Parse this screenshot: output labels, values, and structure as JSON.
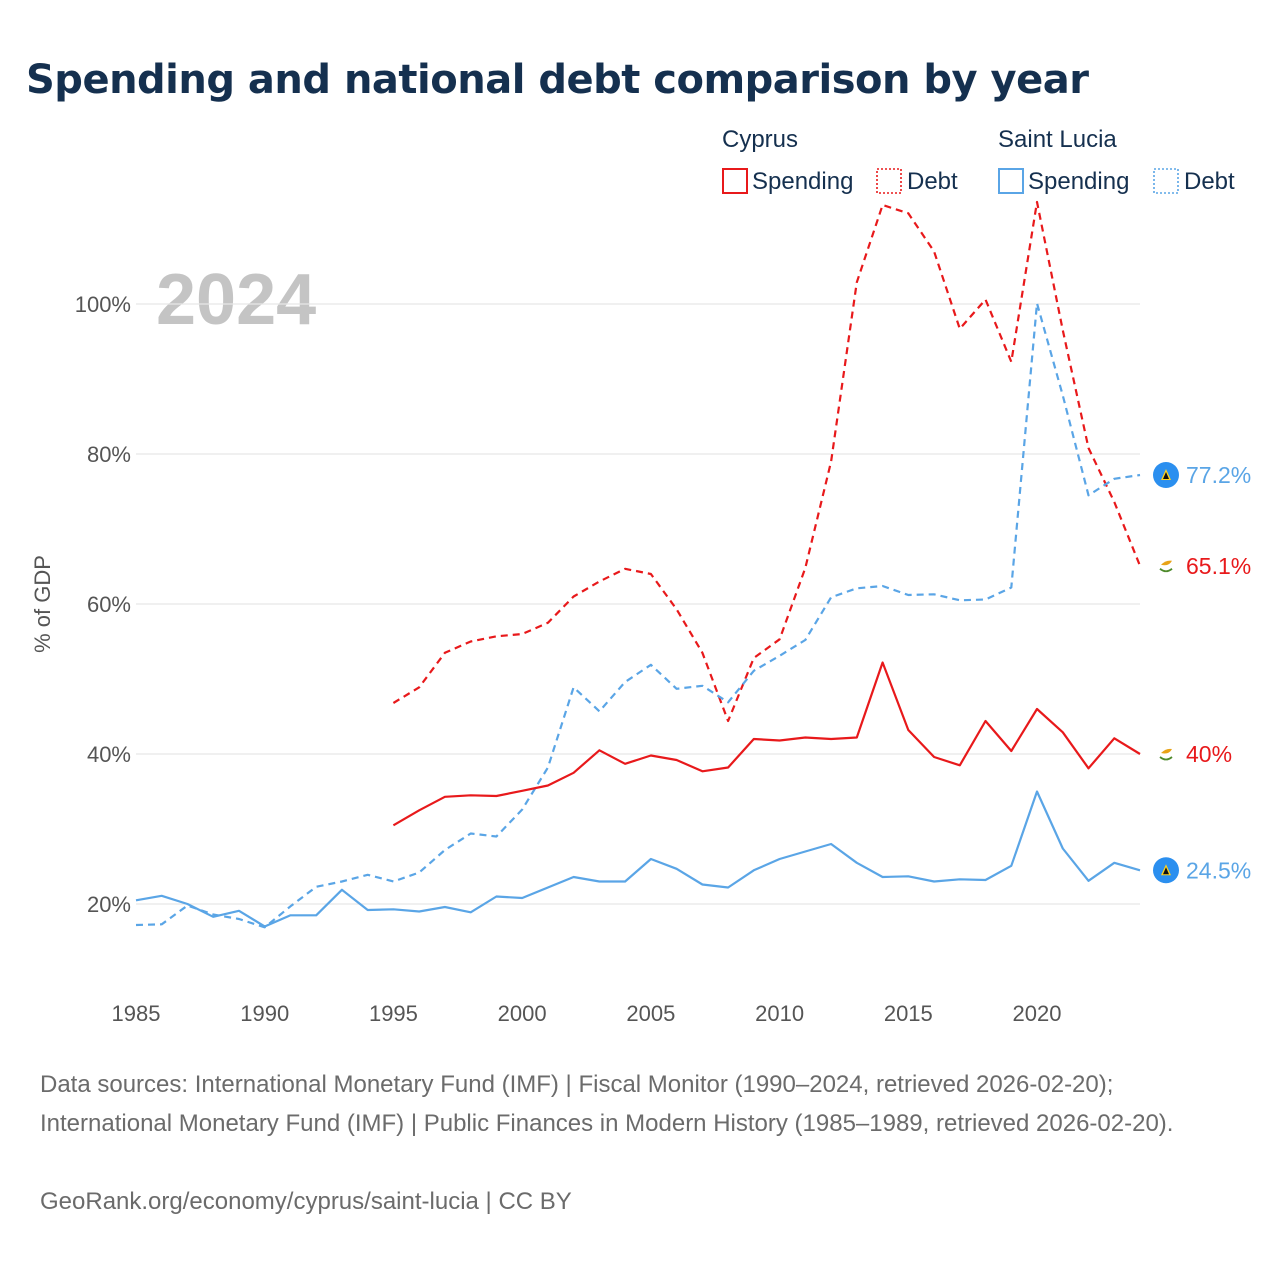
{
  "chart_data": {
    "type": "line",
    "title": "Spending and national debt comparison by year",
    "highlight_year": "2024",
    "ylabel": "% of GDP",
    "xlim": [
      1985,
      2024
    ],
    "ylim": [
      10,
      110
    ],
    "x_ticks": [
      1985,
      1990,
      1995,
      2000,
      2005,
      2010,
      2015,
      2020
    ],
    "y_ticks": [
      20,
      40,
      60,
      80,
      100
    ],
    "y_tick_suffix": "%",
    "legend": {
      "groups": [
        {
          "country": "Cyprus",
          "color": "#e8191b",
          "items": [
            {
              "label": "Spending",
              "style": "solid"
            },
            {
              "label": "Debt",
              "style": "dotted"
            }
          ]
        },
        {
          "country": "Saint Lucia",
          "color": "#5aa5e6",
          "items": [
            {
              "label": "Spending",
              "style": "solid"
            },
            {
              "label": "Debt",
              "style": "dotted"
            }
          ]
        }
      ]
    },
    "series": [
      {
        "name": "Cyprus Debt",
        "country": "Cyprus",
        "color": "#e8191b",
        "dash": true,
        "end_label": "65.1%",
        "x": [
          1995,
          1996,
          1997,
          1998,
          1999,
          2000,
          2001,
          2002,
          2003,
          2004,
          2005,
          2006,
          2007,
          2008,
          2009,
          2010,
          2011,
          2012,
          2013,
          2014,
          2015,
          2016,
          2017,
          2018,
          2019,
          2020,
          2021,
          2022,
          2023,
          2024
        ],
        "values": [
          46.8,
          48.9,
          53.5,
          55,
          55.7,
          56,
          57.5,
          61,
          63,
          64.7,
          64,
          59.3,
          53.5,
          44.4,
          52.8,
          55.3,
          64.8,
          79,
          102.9,
          113.2,
          112.1,
          107,
          96.7,
          100.6,
          92.3,
          113.6,
          96.5,
          80.8,
          73.6,
          65.1
        ]
      },
      {
        "name": "Saint Lucia Debt",
        "country": "Saint Lucia",
        "color": "#5aa5e6",
        "dash": true,
        "end_label": "77.2%",
        "x": [
          1985,
          1986,
          1987,
          1988,
          1989,
          1990,
          1991,
          1992,
          1993,
          1994,
          1995,
          1996,
          1997,
          1998,
          1999,
          2000,
          2001,
          2002,
          2003,
          2004,
          2005,
          2006,
          2007,
          2008,
          2009,
          2010,
          2011,
          2012,
          2013,
          2014,
          2015,
          2016,
          2017,
          2018,
          2019,
          2020,
          2021,
          2022,
          2023,
          2024
        ],
        "values": [
          17.2,
          17.3,
          19.8,
          18.6,
          18,
          16.9,
          19.7,
          22.3,
          23,
          23.9,
          23,
          24.2,
          27.2,
          29.4,
          29,
          32.6,
          38.2,
          48.9,
          45.7,
          49.6,
          51.9,
          48.7,
          49.1,
          46.9,
          51.1,
          53.1,
          55.2,
          60.9,
          62.1,
          62.4,
          61.2,
          61.3,
          60.5,
          60.6,
          62.2,
          100.1,
          87.8,
          74.5,
          76.7,
          77.2
        ]
      },
      {
        "name": "Cyprus Spending",
        "country": "Cyprus",
        "color": "#e8191b",
        "dash": false,
        "end_label": "40%",
        "x": [
          1995,
          1996,
          1997,
          1998,
          1999,
          2000,
          2001,
          2002,
          2003,
          2004,
          2005,
          2006,
          2007,
          2008,
          2009,
          2010,
          2011,
          2012,
          2013,
          2014,
          2015,
          2016,
          2017,
          2018,
          2019,
          2020,
          2021,
          2022,
          2023,
          2024
        ],
        "values": [
          30.5,
          32.5,
          34.3,
          34.5,
          34.4,
          35.1,
          35.8,
          37.5,
          40.5,
          38.7,
          39.8,
          39.2,
          37.7,
          38.2,
          42,
          41.8,
          42.2,
          42,
          42.2,
          52.2,
          43.2,
          39.6,
          38.5,
          44.4,
          40.4,
          46,
          42.9,
          38.1,
          42.1,
          40
        ]
      },
      {
        "name": "Saint Lucia Spending",
        "country": "Saint Lucia",
        "color": "#5aa5e6",
        "dash": false,
        "end_label": "24.5%",
        "x": [
          1985,
          1986,
          1987,
          1988,
          1989,
          1990,
          1991,
          1992,
          1993,
          1994,
          1995,
          1996,
          1997,
          1998,
          1999,
          2000,
          2001,
          2002,
          2003,
          2004,
          2005,
          2006,
          2007,
          2008,
          2009,
          2010,
          2011,
          2012,
          2013,
          2014,
          2015,
          2016,
          2017,
          2018,
          2019,
          2020,
          2021,
          2022,
          2023,
          2024
        ],
        "values": [
          20.5,
          21.1,
          20,
          18.3,
          19.1,
          17,
          18.5,
          18.5,
          21.9,
          19.2,
          19.3,
          19,
          19.6,
          18.9,
          21,
          20.8,
          22.2,
          23.6,
          23,
          23,
          26,
          24.7,
          22.6,
          22.2,
          24.5,
          26,
          27,
          28,
          25.5,
          23.6,
          23.7,
          23,
          23.3,
          23.2,
          25.1,
          35,
          27.4,
          23.1,
          25.5,
          24.5
        ]
      }
    ]
  },
  "footer": {
    "sources": "Data sources: International Monetary Fund (IMF) | Fiscal Monitor (1990–2024, retrieved 2026-02-20); International Monetary Fund (IMF) | Public Finances in Modern History (1985–1989, retrieved 2026-02-20).",
    "site": "GeoRank.org/economy/cyprus/saint-lucia | CC BY"
  }
}
